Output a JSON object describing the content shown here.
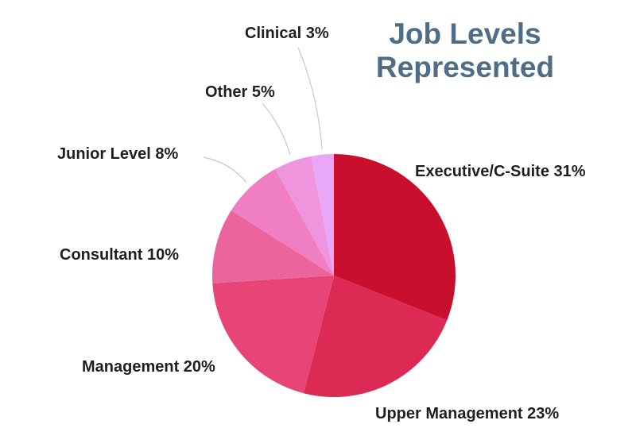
{
  "chart_data": {
    "type": "pie",
    "title_line1": "Job Levels",
    "title_line2": "Represented",
    "slices": [
      {
        "label": "Executive/C-Suite",
        "value": 31,
        "display": "Executive/C-Suite 31%",
        "color": "#c8102e"
      },
      {
        "label": "Upper Management",
        "value": 23,
        "display": "Upper Management 23%",
        "color": "#dc2a55"
      },
      {
        "label": "Management",
        "value": 20,
        "display": "Management 20%",
        "color": "#e64575"
      },
      {
        "label": "Consultant",
        "value": 10,
        "display": "Consultant 10%",
        "color": "#ec649c"
      },
      {
        "label": "Junior Level",
        "value": 8,
        "display": "Junior Level 8%",
        "color": "#ef7ec2"
      },
      {
        "label": "Other",
        "value": 5,
        "display": "Other 5%",
        "color": "#ee95de"
      },
      {
        "label": "Clinical",
        "value": 3,
        "display": "Clinical 3%",
        "color": "#e8a8f7"
      }
    ],
    "legend": "none",
    "leader_line_color": "#c8c8c8"
  }
}
